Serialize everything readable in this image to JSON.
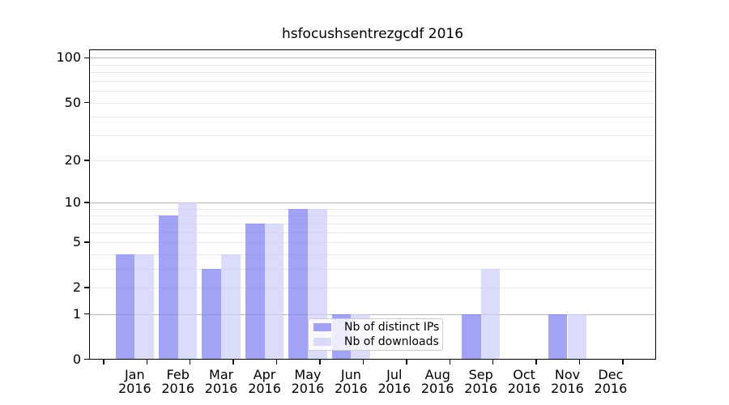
{
  "chart_data": {
    "type": "bar",
    "title": "hsfocushsentrezgcdf 2016",
    "year": "2016",
    "categories": [
      "Jan",
      "Feb",
      "Mar",
      "Apr",
      "May",
      "Jun",
      "Jul",
      "Aug",
      "Sep",
      "Oct",
      "Nov",
      "Dec"
    ],
    "series": [
      {
        "name": "Nb of distinct IPs",
        "color": "#8484f2",
        "alpha": 0.75,
        "values": [
          4,
          8,
          3,
          7,
          9,
          1,
          0,
          0,
          1,
          0,
          1,
          0
        ]
      },
      {
        "name": "Nb of downloads",
        "color": "#cfcffa",
        "alpha": 0.75,
        "values": [
          4,
          10,
          4,
          7,
          9,
          1,
          0,
          0,
          3,
          0,
          1,
          0
        ]
      }
    ],
    "yscale": "log1p",
    "ylim": [
      0,
      113
    ],
    "y_tick_labels": [
      0,
      1,
      2,
      5,
      10,
      20,
      50,
      100
    ],
    "major_gridlines": [
      1,
      10,
      100
    ],
    "minor_gridlines": [
      2,
      3,
      4,
      5,
      6,
      7,
      8,
      9,
      20,
      30,
      40,
      50,
      60,
      70,
      80,
      90
    ],
    "grid": true,
    "legend_position": "lower-center-inside"
  },
  "colors": {
    "background": "#ffffff",
    "spine": "#000000",
    "major_grid": "#b5b5b5",
    "minor_grid": "#e8e8e8",
    "legend_border": "#cccccc",
    "text": "#000000"
  }
}
